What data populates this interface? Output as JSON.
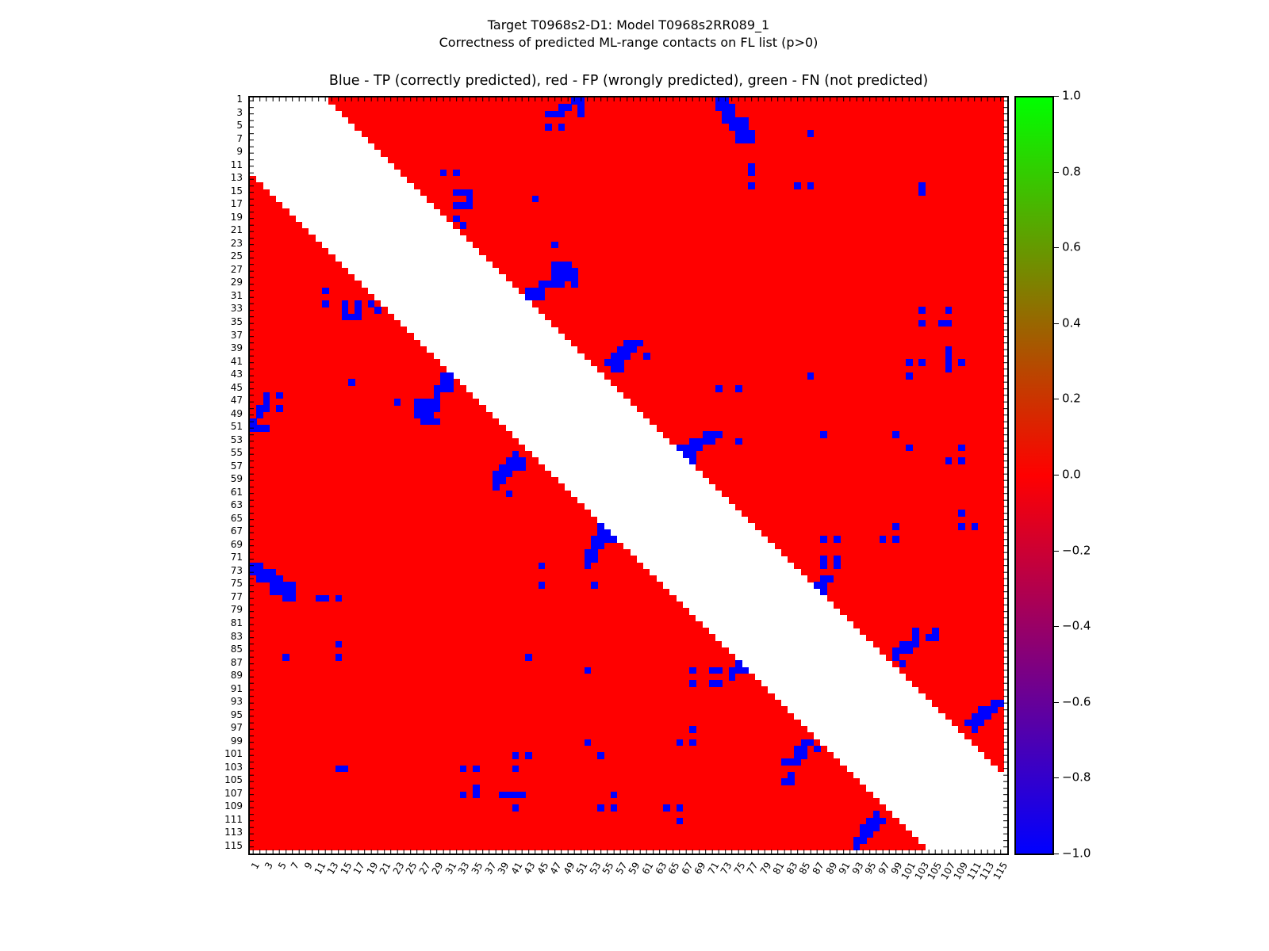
{
  "figure": {
    "title_line1": "Target T0968s2-D1: Model T0968s2RR089_1",
    "title_line2": "Correctness of predicted ML-range contacts on FL list (p>0)"
  },
  "chart_data": {
    "type": "heatmap",
    "title": "Blue - TP (correctly predicted), red - FP (wrongly predicted), green - FN (not predicted)",
    "n_residues": 115,
    "axis_range": [
      1,
      115
    ],
    "min_sequence_separation_shown": 12,
    "matrix_symmetric": true,
    "grid": false,
    "x_tick_labels": [
      1,
      3,
      5,
      7,
      9,
      11,
      13,
      15,
      17,
      19,
      21,
      23,
      25,
      27,
      29,
      31,
      33,
      35,
      37,
      39,
      41,
      43,
      45,
      47,
      49,
      51,
      53,
      55,
      57,
      59,
      61,
      63,
      65,
      67,
      69,
      71,
      73,
      75,
      77,
      79,
      81,
      83,
      85,
      87,
      89,
      91,
      93,
      95,
      97,
      99,
      101,
      103,
      105,
      107,
      109,
      111,
      113,
      115
    ],
    "y_tick_labels": [
      1,
      3,
      5,
      7,
      9,
      11,
      13,
      15,
      17,
      19,
      21,
      23,
      25,
      27,
      29,
      31,
      33,
      35,
      37,
      39,
      41,
      43,
      45,
      47,
      49,
      51,
      53,
      55,
      57,
      59,
      61,
      63,
      65,
      67,
      69,
      71,
      73,
      75,
      77,
      79,
      81,
      83,
      85,
      87,
      89,
      91,
      93,
      95,
      97,
      99,
      101,
      103,
      105,
      107,
      109,
      111,
      113,
      115
    ],
    "colors": {
      "tp": "#0000ff",
      "fp": "#ff0000",
      "fn": "#00ff00",
      "band_and_background": "#ffffff",
      "axis": "#000000"
    },
    "value_encoding": {
      "tp": -1,
      "fp": 0,
      "fn": 1
    },
    "colorbar": {
      "vmin": -1.0,
      "vmax": 1.0,
      "tick_labels": [
        "1.0",
        "0.8",
        "0.6",
        "0.4",
        "0.2",
        "0.0",
        "−0.2",
        "−0.4",
        "−0.6",
        "−0.8",
        "−1.0"
      ],
      "gradient_top": "#00ff00",
      "gradient_mid": "#ff0000",
      "gradient_bottom": "#0000ff"
    },
    "tp_contacts_upper_triangle": [
      [
        1,
        50
      ],
      [
        1,
        51
      ],
      [
        2,
        48
      ],
      [
        2,
        49
      ],
      [
        2,
        51
      ],
      [
        3,
        46
      ],
      [
        3,
        47
      ],
      [
        3,
        48
      ],
      [
        3,
        51
      ],
      [
        5,
        46
      ],
      [
        5,
        48
      ],
      [
        1,
        72
      ],
      [
        1,
        73
      ],
      [
        2,
        72
      ],
      [
        2,
        73
      ],
      [
        2,
        74
      ],
      [
        3,
        73
      ],
      [
        3,
        74
      ],
      [
        4,
        73
      ],
      [
        4,
        74
      ],
      [
        4,
        75
      ],
      [
        4,
        76
      ],
      [
        5,
        74
      ],
      [
        5,
        75
      ],
      [
        5,
        76
      ],
      [
        6,
        75
      ],
      [
        6,
        76
      ],
      [
        6,
        77
      ],
      [
        7,
        75
      ],
      [
        7,
        76
      ],
      [
        7,
        77
      ],
      [
        6,
        86
      ],
      [
        11,
        77
      ],
      [
        12,
        77
      ],
      [
        14,
        77
      ],
      [
        12,
        30
      ],
      [
        12,
        32
      ],
      [
        14,
        84
      ],
      [
        14,
        86
      ],
      [
        14,
        103
      ],
      [
        15,
        103
      ],
      [
        15,
        32
      ],
      [
        15,
        33
      ],
      [
        15,
        34
      ],
      [
        16,
        34
      ],
      [
        17,
        32
      ],
      [
        17,
        33
      ],
      [
        17,
        34
      ],
      [
        19,
        32
      ],
      [
        20,
        33
      ],
      [
        16,
        44
      ],
      [
        23,
        47
      ],
      [
        26,
        47
      ],
      [
        26,
        48
      ],
      [
        26,
        49
      ],
      [
        27,
        47
      ],
      [
        27,
        48
      ],
      [
        27,
        49
      ],
      [
        27,
        50
      ],
      [
        28,
        47
      ],
      [
        28,
        48
      ],
      [
        28,
        49
      ],
      [
        28,
        50
      ],
      [
        29,
        45
      ],
      [
        29,
        46
      ],
      [
        29,
        47
      ],
      [
        29,
        48
      ],
      [
        29,
        50
      ],
      [
        30,
        43
      ],
      [
        30,
        44
      ],
      [
        30,
        45
      ],
      [
        31,
        43
      ],
      [
        31,
        44
      ],
      [
        31,
        45
      ],
      [
        33,
        103
      ],
      [
        33,
        107
      ],
      [
        35,
        103
      ],
      [
        35,
        106
      ],
      [
        35,
        107
      ],
      [
        38,
        58
      ],
      [
        38,
        59
      ],
      [
        38,
        60
      ],
      [
        39,
        57
      ],
      [
        39,
        58
      ],
      [
        39,
        59
      ],
      [
        40,
        56
      ],
      [
        40,
        57
      ],
      [
        40,
        58
      ],
      [
        40,
        61
      ],
      [
        41,
        55
      ],
      [
        41,
        56
      ],
      [
        41,
        57
      ],
      [
        42,
        56
      ],
      [
        42,
        57
      ],
      [
        39,
        107
      ],
      [
        40,
        107
      ],
      [
        41,
        107
      ],
      [
        42,
        107
      ],
      [
        41,
        101
      ],
      [
        41,
        103
      ],
      [
        43,
        101
      ],
      [
        41,
        109
      ],
      [
        43,
        86
      ],
      [
        45,
        72
      ],
      [
        45,
        75
      ],
      [
        52,
        70
      ],
      [
        52,
        71
      ],
      [
        52,
        72
      ],
      [
        53,
        68
      ],
      [
        53,
        69
      ],
      [
        53,
        70
      ],
      [
        53,
        71
      ],
      [
        53,
        75
      ],
      [
        54,
        66
      ],
      [
        54,
        67
      ],
      [
        54,
        68
      ],
      [
        54,
        69
      ],
      [
        55,
        67
      ],
      [
        55,
        68
      ],
      [
        56,
        68
      ],
      [
        52,
        88
      ],
      [
        52,
        99
      ],
      [
        54,
        101
      ],
      [
        54,
        109
      ],
      [
        56,
        107
      ],
      [
        56,
        109
      ],
      [
        64,
        109
      ],
      [
        66,
        99
      ],
      [
        66,
        109
      ],
      [
        66,
        111
      ],
      [
        68,
        97
      ],
      [
        68,
        99
      ],
      [
        68,
        88
      ],
      [
        68,
        90
      ],
      [
        71,
        88
      ],
      [
        71,
        90
      ],
      [
        72,
        88
      ],
      [
        72,
        90
      ],
      [
        74,
        88
      ],
      [
        74,
        89
      ],
      [
        75,
        87
      ],
      [
        75,
        88
      ],
      [
        76,
        88
      ],
      [
        82,
        102
      ],
      [
        83,
        102
      ],
      [
        82,
        105
      ],
      [
        83,
        104
      ],
      [
        83,
        105
      ],
      [
        84,
        100
      ],
      [
        84,
        101
      ],
      [
        84,
        102
      ],
      [
        85,
        99
      ],
      [
        85,
        100
      ],
      [
        85,
        101
      ],
      [
        86,
        99
      ],
      [
        87,
        100
      ],
      [
        93,
        114
      ],
      [
        93,
        115
      ],
      [
        94,
        112
      ],
      [
        94,
        113
      ],
      [
        94,
        114
      ],
      [
        95,
        111
      ],
      [
        95,
        112
      ],
      [
        95,
        113
      ],
      [
        96,
        110
      ],
      [
        96,
        111
      ],
      [
        96,
        112
      ],
      [
        97,
        111
      ]
    ]
  }
}
